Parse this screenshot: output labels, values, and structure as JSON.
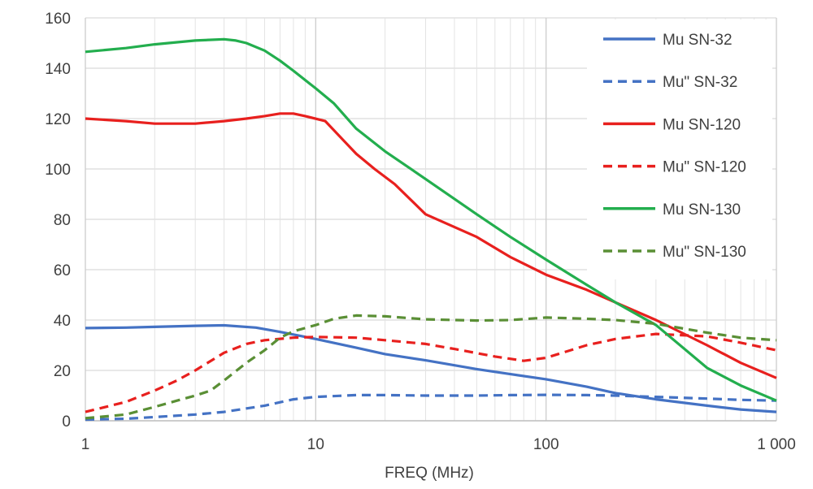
{
  "chart_data": {
    "type": "line",
    "title": "",
    "xlabel": "FREQ (MHz)",
    "ylabel": "",
    "xscale": "log",
    "xlim": [
      1,
      1000
    ],
    "ylim": [
      0,
      160
    ],
    "grid": true,
    "legend_position": "top-right",
    "x_ticks": [
      {
        "value": 1,
        "label": "1"
      },
      {
        "value": 10,
        "label": "10"
      },
      {
        "value": 100,
        "label": "100"
      },
      {
        "value": 1000,
        "label": "1 000"
      }
    ],
    "y_ticks": [
      {
        "value": 0,
        "label": "0"
      },
      {
        "value": 20,
        "label": "20"
      },
      {
        "value": 40,
        "label": "40"
      },
      {
        "value": 60,
        "label": "60"
      },
      {
        "value": 80,
        "label": "80"
      },
      {
        "value": 100,
        "label": "100"
      },
      {
        "value": 120,
        "label": "120"
      },
      {
        "value": 140,
        "label": "140"
      },
      {
        "value": 160,
        "label": "160"
      }
    ],
    "series": [
      {
        "name": "Mu SN-32",
        "color": "#4472c4",
        "dash": "solid",
        "points": [
          [
            1,
            36.8
          ],
          [
            1.5,
            37
          ],
          [
            2,
            37.3
          ],
          [
            3,
            37.7
          ],
          [
            4,
            37.9
          ],
          [
            5.5,
            37
          ],
          [
            7,
            35.3
          ],
          [
            10,
            32.5
          ],
          [
            15,
            29
          ],
          [
            20,
            26.5
          ],
          [
            30,
            24
          ],
          [
            50,
            20.5
          ],
          [
            70,
            18.5
          ],
          [
            100,
            16.5
          ],
          [
            150,
            13.5
          ],
          [
            200,
            11
          ],
          [
            300,
            8.5
          ],
          [
            500,
            6
          ],
          [
            700,
            4.5
          ],
          [
            1000,
            3.5
          ]
        ]
      },
      {
        "name": "Mu\" SN-32",
        "color": "#4472c4",
        "dash": "dashed",
        "points": [
          [
            1,
            0.5
          ],
          [
            1.5,
            0.8
          ],
          [
            2,
            1.5
          ],
          [
            3,
            2.5
          ],
          [
            4,
            3.5
          ],
          [
            6,
            6
          ],
          [
            8,
            8.5
          ],
          [
            10,
            9.5
          ],
          [
            15,
            10.2
          ],
          [
            20,
            10.2
          ],
          [
            30,
            10
          ],
          [
            50,
            10
          ],
          [
            70,
            10.2
          ],
          [
            100,
            10.3
          ],
          [
            150,
            10.2
          ],
          [
            200,
            10
          ],
          [
            300,
            9.5
          ],
          [
            500,
            8.8
          ],
          [
            700,
            8.3
          ],
          [
            1000,
            8
          ]
        ]
      },
      {
        "name": "Mu SN-120",
        "color": "#e8201e",
        "dash": "solid",
        "points": [
          [
            1,
            120
          ],
          [
            1.5,
            119
          ],
          [
            2,
            118
          ],
          [
            3,
            118
          ],
          [
            4,
            119
          ],
          [
            5,
            120
          ],
          [
            6,
            121
          ],
          [
            7,
            122
          ],
          [
            8,
            122
          ],
          [
            9,
            121
          ],
          [
            11,
            119
          ],
          [
            13,
            112
          ],
          [
            15,
            106
          ],
          [
            18,
            100
          ],
          [
            22,
            94
          ],
          [
            30,
            82
          ],
          [
            50,
            73
          ],
          [
            70,
            65
          ],
          [
            100,
            58
          ],
          [
            150,
            52
          ],
          [
            200,
            47
          ],
          [
            300,
            40
          ],
          [
            500,
            30
          ],
          [
            700,
            23
          ],
          [
            1000,
            17
          ]
        ]
      },
      {
        "name": "Mu\" SN-120",
        "color": "#e8201e",
        "dash": "dashed",
        "points": [
          [
            1,
            3.5
          ],
          [
            1.5,
            7.5
          ],
          [
            2,
            12
          ],
          [
            2.5,
            16
          ],
          [
            3,
            20
          ],
          [
            4,
            27
          ],
          [
            5,
            30.5
          ],
          [
            6,
            32
          ],
          [
            8,
            33
          ],
          [
            10,
            33.3
          ],
          [
            15,
            33
          ],
          [
            20,
            32
          ],
          [
            30,
            30.5
          ],
          [
            40,
            28.5
          ],
          [
            60,
            25.5
          ],
          [
            80,
            23.8
          ],
          [
            100,
            25
          ],
          [
            150,
            30
          ],
          [
            200,
            32.5
          ],
          [
            300,
            34.5
          ],
          [
            500,
            33.5
          ],
          [
            700,
            31
          ],
          [
            1000,
            28
          ]
        ]
      },
      {
        "name": "Mu SN-130",
        "color": "#23ae4e",
        "dash": "solid",
        "points": [
          [
            1,
            146.5
          ],
          [
            1.5,
            148
          ],
          [
            2,
            149.5
          ],
          [
            3,
            151
          ],
          [
            4,
            151.5
          ],
          [
            4.5,
            151
          ],
          [
            5,
            150
          ],
          [
            6,
            147
          ],
          [
            7,
            143
          ],
          [
            8,
            139
          ],
          [
            10,
            132
          ],
          [
            12,
            126
          ],
          [
            15,
            116
          ],
          [
            20,
            107
          ],
          [
            30,
            96
          ],
          [
            50,
            82
          ],
          [
            70,
            73
          ],
          [
            100,
            64
          ],
          [
            150,
            54
          ],
          [
            200,
            47
          ],
          [
            300,
            38
          ],
          [
            500,
            21
          ],
          [
            700,
            14
          ],
          [
            1000,
            8
          ]
        ]
      },
      {
        "name": "Mu\" SN-130",
        "color": "#5a8f35",
        "dash": "dashed",
        "points": [
          [
            1,
            1
          ],
          [
            1.5,
            2.5
          ],
          [
            2,
            5.5
          ],
          [
            2.5,
            8
          ],
          [
            3,
            10
          ],
          [
            3.5,
            12
          ],
          [
            4,
            16
          ],
          [
            5,
            23
          ],
          [
            6,
            28
          ],
          [
            7,
            33
          ],
          [
            8,
            35.5
          ],
          [
            10,
            38
          ],
          [
            12,
            40.5
          ],
          [
            15,
            41.8
          ],
          [
            20,
            41.5
          ],
          [
            30,
            40.3
          ],
          [
            50,
            39.8
          ],
          [
            70,
            40
          ],
          [
            100,
            41
          ],
          [
            150,
            40.5
          ],
          [
            200,
            40
          ],
          [
            300,
            38.5
          ],
          [
            500,
            35
          ],
          [
            700,
            33
          ],
          [
            1000,
            32
          ]
        ]
      }
    ]
  }
}
